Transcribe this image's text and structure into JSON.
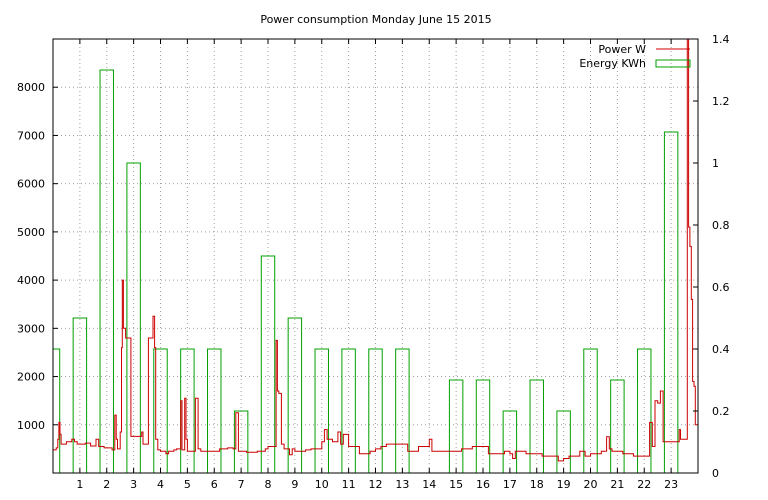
{
  "chart_data": {
    "type": "bar",
    "title": "Power consumption Monday June 15 2015",
    "xlabel": "",
    "ylabel": "",
    "y2label": "",
    "grid": true,
    "legend_position": "top-right",
    "x": {
      "range": [
        0,
        24
      ],
      "ticks": [
        1,
        2,
        3,
        4,
        5,
        6,
        7,
        8,
        9,
        10,
        11,
        12,
        13,
        14,
        15,
        16,
        17,
        18,
        19,
        20,
        21,
        22,
        23
      ]
    },
    "y": {
      "range": [
        0,
        9000
      ],
      "ticks": [
        1000,
        2000,
        3000,
        4000,
        5000,
        6000,
        7000,
        8000
      ]
    },
    "y2": {
      "range": [
        0,
        1.4
      ],
      "ticks": [
        "0",
        "0.2",
        "0.4",
        "0.6",
        "0.8",
        "1",
        "1.2",
        "1.4"
      ]
    },
    "series": [
      {
        "name": "Power W",
        "type": "line",
        "axis": "y",
        "color": "#cc0000",
        "points": [
          [
            0.0,
            480
          ],
          [
            0.12,
            520
          ],
          [
            0.18,
            700
          ],
          [
            0.22,
            1050
          ],
          [
            0.26,
            800
          ],
          [
            0.3,
            600
          ],
          [
            0.4,
            600
          ],
          [
            0.5,
            650
          ],
          [
            0.6,
            650
          ],
          [
            0.7,
            700
          ],
          [
            0.8,
            650
          ],
          [
            0.9,
            600
          ],
          [
            1.0,
            600
          ],
          [
            1.2,
            620
          ],
          [
            1.4,
            560
          ],
          [
            1.6,
            700
          ],
          [
            1.7,
            550
          ],
          [
            1.9,
            520
          ],
          [
            2.0,
            520
          ],
          [
            2.2,
            480
          ],
          [
            2.3,
            1200
          ],
          [
            2.35,
            700
          ],
          [
            2.4,
            500
          ],
          [
            2.5,
            850
          ],
          [
            2.55,
            2600
          ],
          [
            2.58,
            4000
          ],
          [
            2.62,
            3000
          ],
          [
            2.7,
            2800
          ],
          [
            2.8,
            2800
          ],
          [
            2.9,
            760
          ],
          [
            3.0,
            760
          ],
          [
            3.2,
            760
          ],
          [
            3.3,
            850
          ],
          [
            3.35,
            600
          ],
          [
            3.5,
            600
          ],
          [
            3.55,
            2800
          ],
          [
            3.7,
            2800
          ],
          [
            3.72,
            3250
          ],
          [
            3.78,
            2600
          ],
          [
            3.82,
            700
          ],
          [
            3.9,
            480
          ],
          [
            4.0,
            450
          ],
          [
            4.2,
            400
          ],
          [
            4.3,
            450
          ],
          [
            4.5,
            480
          ],
          [
            4.6,
            500
          ],
          [
            4.75,
            1500
          ],
          [
            4.8,
            480
          ],
          [
            4.9,
            1550
          ],
          [
            4.95,
            700
          ],
          [
            5.0,
            450
          ],
          [
            5.2,
            450
          ],
          [
            5.3,
            1550
          ],
          [
            5.4,
            500
          ],
          [
            5.5,
            450
          ],
          [
            6.0,
            450
          ],
          [
            6.2,
            500
          ],
          [
            6.5,
            520
          ],
          [
            6.7,
            500
          ],
          [
            6.8,
            1250
          ],
          [
            6.9,
            450
          ],
          [
            7.0,
            450
          ],
          [
            7.2,
            430
          ],
          [
            7.5,
            430
          ],
          [
            7.6,
            450
          ],
          [
            7.8,
            450
          ],
          [
            7.9,
            500
          ],
          [
            8.0,
            550
          ],
          [
            8.2,
            550
          ],
          [
            8.3,
            2750
          ],
          [
            8.35,
            1700
          ],
          [
            8.4,
            1650
          ],
          [
            8.5,
            600
          ],
          [
            8.6,
            500
          ],
          [
            8.8,
            380
          ],
          [
            8.9,
            500
          ],
          [
            9.0,
            450
          ],
          [
            9.2,
            450
          ],
          [
            9.4,
            480
          ],
          [
            9.6,
            500
          ],
          [
            9.8,
            500
          ],
          [
            10.0,
            650
          ],
          [
            10.1,
            900
          ],
          [
            10.2,
            700
          ],
          [
            10.4,
            650
          ],
          [
            10.6,
            850
          ],
          [
            10.7,
            600
          ],
          [
            10.8,
            800
          ],
          [
            11.0,
            550
          ],
          [
            11.2,
            550
          ],
          [
            11.4,
            400
          ],
          [
            11.6,
            400
          ],
          [
            11.8,
            450
          ],
          [
            12.0,
            500
          ],
          [
            12.2,
            550
          ],
          [
            12.4,
            600
          ],
          [
            12.6,
            600
          ],
          [
            12.8,
            600
          ],
          [
            13.0,
            600
          ],
          [
            13.2,
            450
          ],
          [
            13.4,
            450
          ],
          [
            13.6,
            550
          ],
          [
            13.8,
            550
          ],
          [
            14.0,
            700
          ],
          [
            14.1,
            450
          ],
          [
            14.5,
            450
          ],
          [
            15.0,
            450
          ],
          [
            15.2,
            500
          ],
          [
            15.4,
            500
          ],
          [
            15.6,
            550
          ],
          [
            15.8,
            550
          ],
          [
            16.0,
            550
          ],
          [
            16.2,
            400
          ],
          [
            16.4,
            400
          ],
          [
            16.6,
            400
          ],
          [
            16.8,
            450
          ],
          [
            17.0,
            400
          ],
          [
            17.1,
            300
          ],
          [
            17.2,
            450
          ],
          [
            17.4,
            450
          ],
          [
            17.6,
            400
          ],
          [
            17.8,
            400
          ],
          [
            18.0,
            400
          ],
          [
            18.2,
            350
          ],
          [
            18.4,
            350
          ],
          [
            18.6,
            350
          ],
          [
            18.8,
            250
          ],
          [
            19.0,
            300
          ],
          [
            19.2,
            350
          ],
          [
            19.4,
            350
          ],
          [
            19.6,
            450
          ],
          [
            19.8,
            350
          ],
          [
            20.0,
            400
          ],
          [
            20.2,
            400
          ],
          [
            20.4,
            450
          ],
          [
            20.6,
            750
          ],
          [
            20.7,
            500
          ],
          [
            20.8,
            450
          ],
          [
            21.0,
            450
          ],
          [
            21.2,
            400
          ],
          [
            21.4,
            400
          ],
          [
            21.6,
            350
          ],
          [
            21.8,
            350
          ],
          [
            22.0,
            350
          ],
          [
            22.2,
            1050
          ],
          [
            22.3,
            550
          ],
          [
            22.4,
            1500
          ],
          [
            22.5,
            1450
          ],
          [
            22.6,
            1700
          ],
          [
            22.7,
            650
          ],
          [
            22.9,
            650
          ],
          [
            23.0,
            650
          ],
          [
            23.2,
            650
          ],
          [
            23.3,
            900
          ],
          [
            23.35,
            700
          ],
          [
            23.5,
            700
          ],
          [
            23.6,
            9000
          ],
          [
            23.65,
            5100
          ],
          [
            23.7,
            4700
          ],
          [
            23.75,
            3600
          ],
          [
            23.8,
            1900
          ],
          [
            23.85,
            1800
          ],
          [
            23.9,
            1000
          ],
          [
            24.0,
            600
          ]
        ]
      },
      {
        "name": "Energy KWh",
        "type": "bar",
        "axis": "y2",
        "color": "#00a000",
        "bins": [
          {
            "x0": 0,
            "x1": 0.25,
            "v": 0.4
          },
          {
            "x0": 0.75,
            "x1": 1.25,
            "v": 0.5
          },
          {
            "x0": 1.75,
            "x1": 2.25,
            "v": 1.3
          },
          {
            "x0": 2.75,
            "x1": 3.25,
            "v": 1.0
          },
          {
            "x0": 3.75,
            "x1": 4.25,
            "v": 0.4
          },
          {
            "x0": 4.75,
            "x1": 5.25,
            "v": 0.4
          },
          {
            "x0": 5.75,
            "x1": 6.25,
            "v": 0.4
          },
          {
            "x0": 6.75,
            "x1": 7.25,
            "v": 0.2
          },
          {
            "x0": 7.75,
            "x1": 8.25,
            "v": 0.7
          },
          {
            "x0": 8.75,
            "x1": 9.25,
            "v": 0.5
          },
          {
            "x0": 9.75,
            "x1": 10.25,
            "v": 0.4
          },
          {
            "x0": 10.75,
            "x1": 11.25,
            "v": 0.4
          },
          {
            "x0": 11.75,
            "x1": 12.25,
            "v": 0.4
          },
          {
            "x0": 12.75,
            "x1": 13.25,
            "v": 0.4
          },
          {
            "x0": 14.75,
            "x1": 15.25,
            "v": 0.3
          },
          {
            "x0": 15.75,
            "x1": 16.25,
            "v": 0.3
          },
          {
            "x0": 16.75,
            "x1": 17.25,
            "v": 0.2
          },
          {
            "x0": 17.75,
            "x1": 18.25,
            "v": 0.3
          },
          {
            "x0": 18.75,
            "x1": 19.25,
            "v": 0.2
          },
          {
            "x0": 19.75,
            "x1": 20.25,
            "v": 0.4
          },
          {
            "x0": 20.75,
            "x1": 21.25,
            "v": 0.3
          },
          {
            "x0": 21.75,
            "x1": 22.25,
            "v": 0.4
          },
          {
            "x0": 22.75,
            "x1": 23.25,
            "v": 1.1
          }
        ]
      }
    ]
  }
}
